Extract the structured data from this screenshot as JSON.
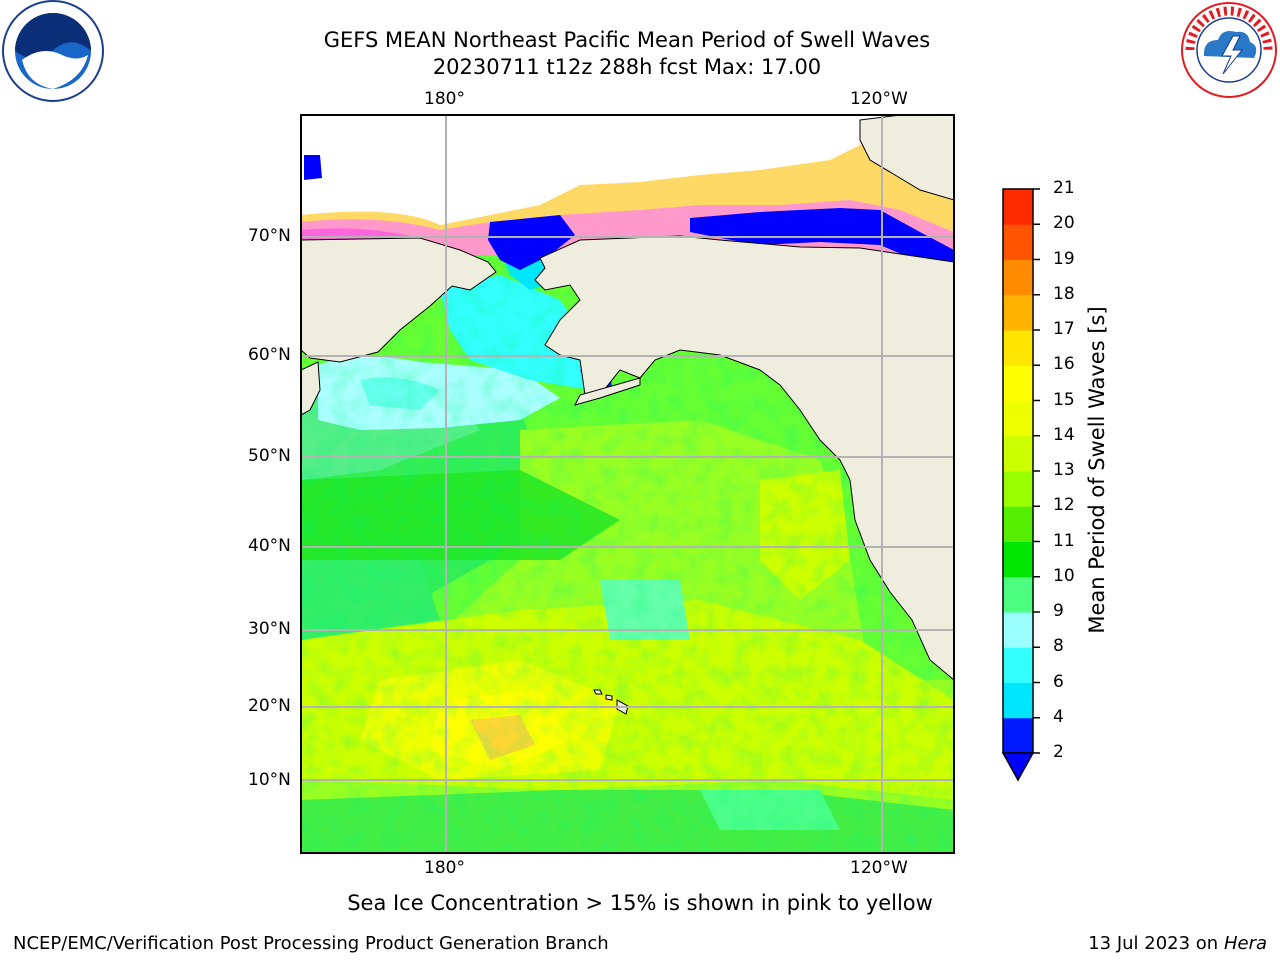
{
  "title_line1": "GEFS MEAN Northeast Pacific Mean Period of Swell Waves",
  "title_line2": "20230711 t12z 288h fcst   Max: 17.00",
  "lon_labels": [
    "180°",
    "120°W"
  ],
  "lat_labels": [
    "70°N",
    "60°N",
    "50°N",
    "40°N",
    "30°N",
    "20°N",
    "10°N"
  ],
  "colorbar": {
    "label": "Mean Period of Swell Waves [s]",
    "ticks": [
      "2",
      "4",
      "6",
      "8",
      "9",
      "10",
      "11",
      "12",
      "13",
      "14",
      "15",
      "16",
      "17",
      "18",
      "19",
      "20",
      "21"
    ],
    "colors": [
      "#0019ff",
      "#00e5ff",
      "#33ffff",
      "#99ffff",
      "#4dff80",
      "#00e600",
      "#55ee00",
      "#99ff00",
      "#ccff00",
      "#eeff00",
      "#ffff00",
      "#ffe600",
      "#ffb300",
      "#ff8c00",
      "#ff5500",
      "#ff2a00",
      "#ff0000"
    ],
    "under_color": "#0000ff"
  },
  "note": "Sea Ice Concentration > 15% is shown in pink to yellow",
  "credit": "NCEP/EMC/Verification Post Processing Product Generation Branch",
  "date": "13 Jul 2023 on",
  "host": "Hera"
}
